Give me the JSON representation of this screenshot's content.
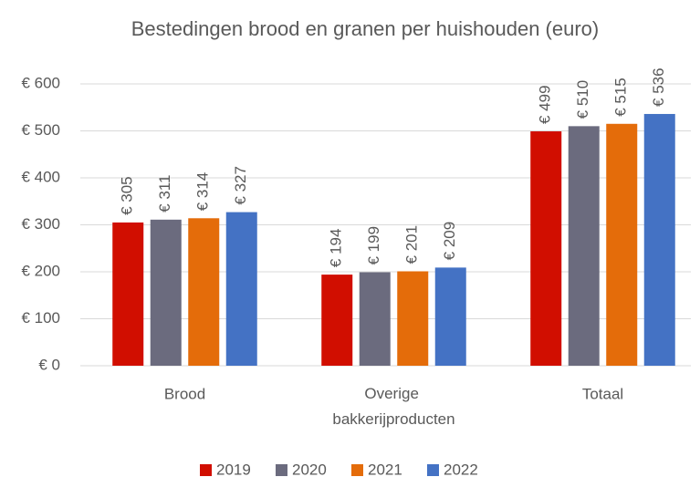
{
  "chart_data": {
    "type": "bar",
    "title": "Bestedingen brood en granen per huishouden (euro)",
    "categories": [
      "Brood",
      "Overige bakkerijproducten",
      "Totaal"
    ],
    "series": [
      {
        "name": "2019",
        "color": "#d10e00",
        "values": [
          305,
          194,
          499
        ],
        "value_labels": [
          "€ 305",
          "€ 194",
          "€ 499"
        ]
      },
      {
        "name": "2020",
        "color": "#6b6b7e",
        "values": [
          311,
          199,
          510
        ],
        "value_labels": [
          "€ 311",
          "€ 199",
          "€ 510"
        ]
      },
      {
        "name": "2021",
        "color": "#e46c0a",
        "values": [
          314,
          201,
          515
        ],
        "value_labels": [
          "€ 314",
          "€ 201",
          "€ 515"
        ]
      },
      {
        "name": "2022",
        "color": "#4472c4",
        "values": [
          327,
          209,
          536
        ],
        "value_labels": [
          "€ 327",
          "€ 209",
          "€ 536"
        ]
      }
    ],
    "ylim": [
      0,
      600
    ],
    "yticks": [
      {
        "value": 0,
        "label": "€ 0"
      },
      {
        "value": 100,
        "label": "€ 100"
      },
      {
        "value": 200,
        "label": "€ 200"
      },
      {
        "value": 300,
        "label": "€ 300"
      },
      {
        "value": 400,
        "label": "€ 400"
      },
      {
        "value": 500,
        "label": "€ 500"
      },
      {
        "value": 600,
        "label": "€ 600"
      }
    ],
    "grid": true,
    "legend": "bottom"
  }
}
